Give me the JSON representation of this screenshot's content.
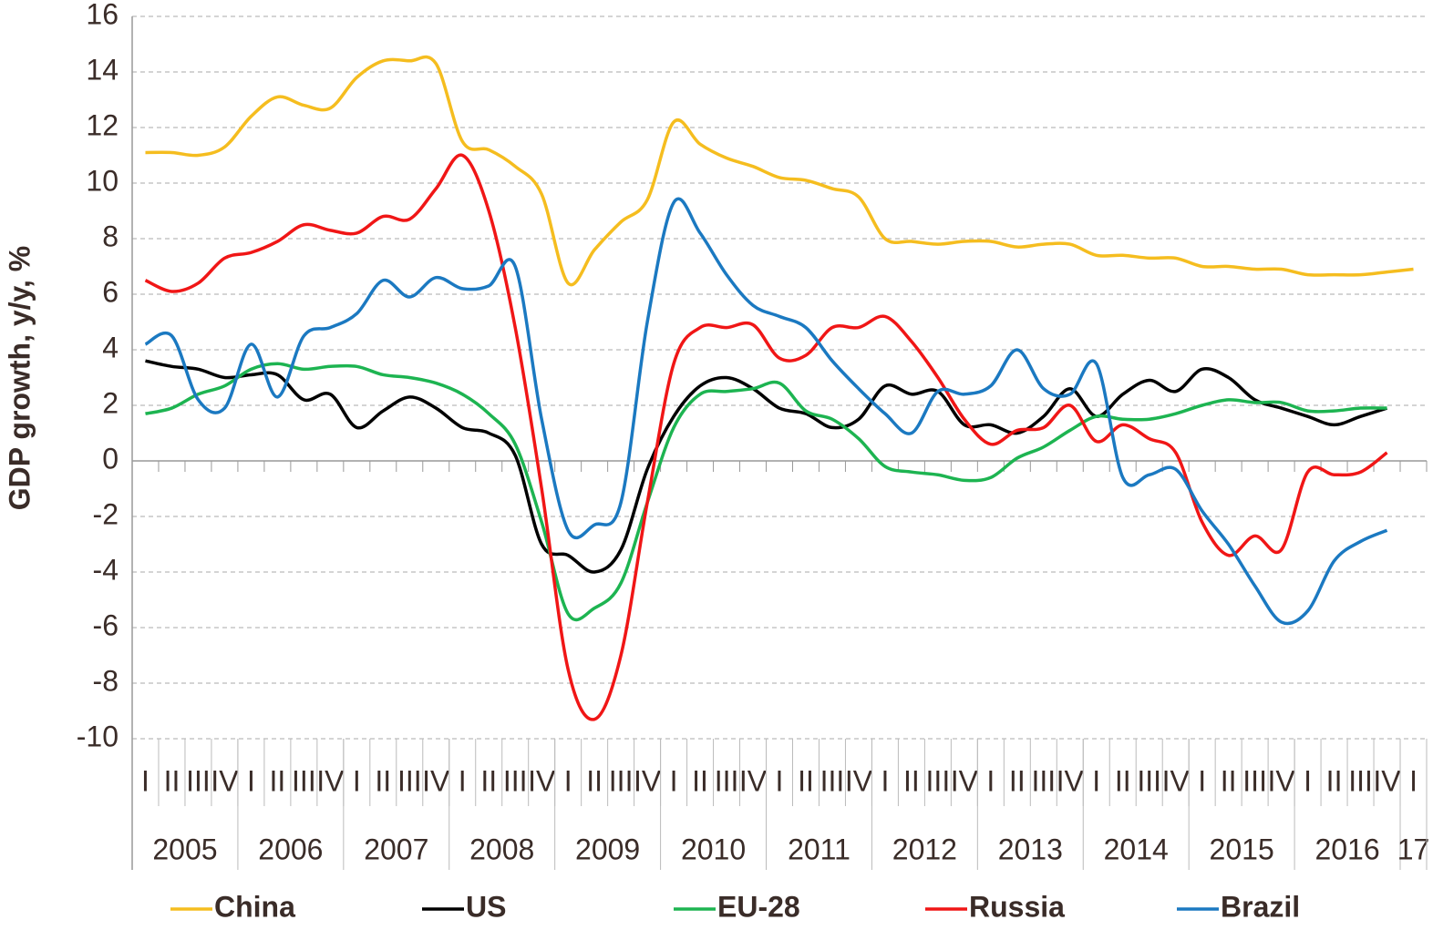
{
  "chart_data": {
    "type": "line",
    "y_axis_label": "GDP growth, y/y, %",
    "categories": [
      "I",
      "II",
      "III",
      "IV",
      "I",
      "II",
      "III",
      "IV",
      "I",
      "II",
      "III",
      "IV",
      "I",
      "II",
      "III",
      "IV",
      "I",
      "II",
      "III",
      "IV",
      "I",
      "II",
      "III",
      "IV",
      "I",
      "II",
      "III",
      "IV",
      "I",
      "II",
      "III",
      "IV",
      "I",
      "II",
      "III",
      "IV",
      "I",
      "II",
      "III",
      "IV",
      "I",
      "II",
      "III",
      "IV",
      "I",
      "II",
      "III",
      "IV",
      "I"
    ],
    "year_labels": [
      "2005",
      "2006",
      "2007",
      "2008",
      "2009",
      "2010",
      "2011",
      "2012",
      "2013",
      "2014",
      "2015",
      "2016",
      "17"
    ],
    "ylim": [
      -10,
      16
    ],
    "yticks": [
      -10,
      -8,
      -6,
      -4,
      -2,
      0,
      2,
      4,
      6,
      8,
      10,
      12,
      14,
      16
    ],
    "grid": true,
    "series": [
      {
        "name": "China",
        "color": "#f5bd1f",
        "values": [
          11.1,
          11.1,
          11.0,
          11.3,
          12.4,
          13.1,
          12.8,
          12.7,
          13.8,
          14.4,
          14.4,
          14.3,
          11.5,
          11.2,
          10.6,
          9.6,
          6.4,
          7.6,
          8.6,
          9.4,
          12.2,
          11.4,
          10.9,
          10.6,
          10.2,
          10.1,
          9.8,
          9.5,
          8.0,
          7.9,
          7.8,
          7.9,
          7.9,
          7.7,
          7.8,
          7.8,
          7.4,
          7.4,
          7.3,
          7.3,
          7.0,
          7.0,
          6.9,
          6.9,
          6.7,
          6.7,
          6.7,
          6.8,
          6.9
        ]
      },
      {
        "name": "US",
        "color": "#000000",
        "values": [
          3.6,
          3.4,
          3.3,
          3.0,
          3.1,
          3.1,
          2.2,
          2.4,
          1.2,
          1.8,
          2.3,
          1.9,
          1.2,
          1.0,
          0.2,
          -3.0,
          -3.4,
          -4.0,
          -3.2,
          -0.3,
          1.6,
          2.7,
          3.0,
          2.6,
          1.9,
          1.7,
          1.2,
          1.5,
          2.7,
          2.4,
          2.5,
          1.3,
          1.3,
          1.0,
          1.6,
          2.6,
          1.6,
          2.4,
          2.9,
          2.5,
          3.3,
          3.0,
          2.2,
          1.9,
          1.6,
          1.3,
          1.6,
          1.9,
          null
        ]
      },
      {
        "name": "EU-28",
        "color": "#1db451",
        "values": [
          1.7,
          1.9,
          2.4,
          2.7,
          3.3,
          3.5,
          3.3,
          3.4,
          3.4,
          3.1,
          3.0,
          2.8,
          2.4,
          1.7,
          0.6,
          -2.2,
          -5.5,
          -5.3,
          -4.4,
          -1.5,
          1.2,
          2.4,
          2.5,
          2.6,
          2.8,
          1.8,
          1.5,
          0.8,
          -0.2,
          -0.4,
          -0.5,
          -0.7,
          -0.6,
          0.1,
          0.5,
          1.1,
          1.6,
          1.5,
          1.5,
          1.7,
          2.0,
          2.2,
          2.1,
          2.1,
          1.8,
          1.8,
          1.9,
          1.9,
          null
        ]
      },
      {
        "name": "Russia",
        "color": "#f01616",
        "values": [
          6.5,
          6.1,
          6.4,
          7.3,
          7.5,
          7.9,
          8.5,
          8.3,
          8.2,
          8.8,
          8.7,
          9.8,
          11.0,
          9.0,
          4.8,
          -1.0,
          -7.5,
          -9.3,
          -7.0,
          -1.5,
          3.5,
          4.8,
          4.8,
          4.9,
          3.7,
          3.8,
          4.8,
          4.8,
          5.2,
          4.3,
          3.0,
          1.5,
          0.6,
          1.1,
          1.2,
          2.0,
          0.7,
          1.3,
          0.8,
          0.3,
          -2.2,
          -3.4,
          -2.7,
          -3.2,
          -0.4,
          -0.5,
          -0.4,
          0.3,
          null
        ]
      },
      {
        "name": "Brazil",
        "color": "#1b79c1",
        "values": [
          4.2,
          4.5,
          2.2,
          1.9,
          4.2,
          2.3,
          4.5,
          4.8,
          5.3,
          6.5,
          5.9,
          6.6,
          6.2,
          6.3,
          7.0,
          1.5,
          -2.5,
          -2.3,
          -1.5,
          5.0,
          9.3,
          8.2,
          6.7,
          5.6,
          5.2,
          4.8,
          3.6,
          2.6,
          1.7,
          1.0,
          2.5,
          2.4,
          2.7,
          4.0,
          2.6,
          2.4,
          3.5,
          -0.6,
          -0.5,
          -0.3,
          -1.8,
          -3.0,
          -4.5,
          -5.8,
          -5.4,
          -3.6,
          -2.9,
          -2.5,
          null
        ]
      }
    ]
  }
}
